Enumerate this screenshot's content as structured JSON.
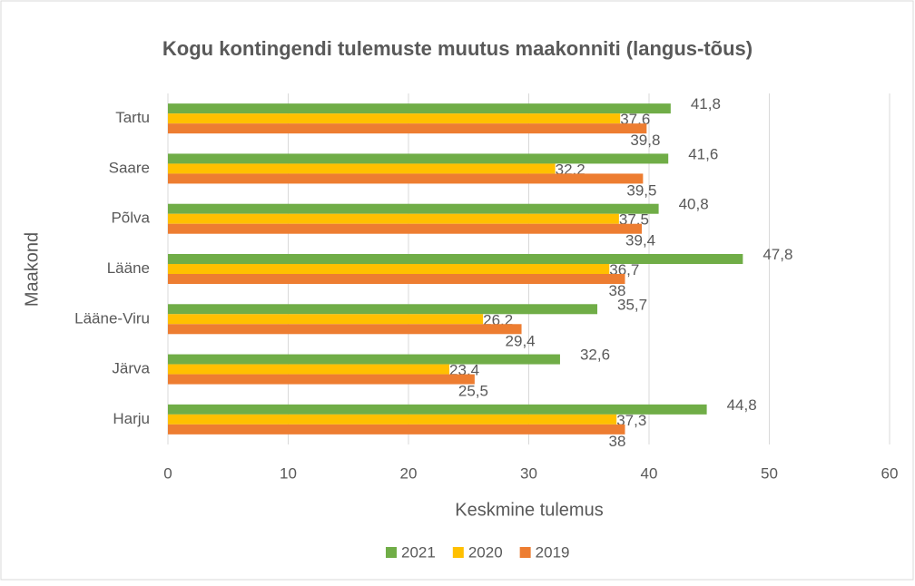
{
  "chart_data": {
    "type": "bar",
    "orientation": "horizontal",
    "title": "Kogu kontingendi tulemuste muutus maakonniti (langus-tõus)",
    "xlabel": "Keskmine tulemus",
    "ylabel": "Maakond",
    "categories": [
      "Tartu",
      "Saare",
      "Põlva",
      "Lääne",
      "Lääne-Viru",
      "Järva",
      "Harju"
    ],
    "series": [
      {
        "name": "2021",
        "color": "#70ad47",
        "values": [
          41.8,
          41.6,
          40.8,
          47.8,
          35.7,
          32.6,
          44.8
        ],
        "value_labels": [
          "41,8",
          "41,6",
          "40,8",
          "47,8",
          "35,7",
          "32,6",
          "44,8"
        ]
      },
      {
        "name": "2020",
        "color": "#ffc000",
        "values": [
          37.6,
          32.2,
          37.5,
          36.7,
          26.2,
          23.4,
          37.3
        ],
        "value_labels": [
          "37,6",
          "32,2",
          "37,5",
          "36,7",
          "26,2",
          "23,4",
          "37,3"
        ]
      },
      {
        "name": "2019",
        "color": "#ed7d31",
        "values": [
          39.8,
          39.5,
          39.4,
          38,
          29.4,
          25.5,
          38
        ],
        "value_labels": [
          "39,8",
          "39,5",
          "39,4",
          "38",
          "29,4",
          "25,5",
          "38"
        ]
      }
    ],
    "xlim": [
      0,
      60
    ],
    "xticks": [
      0,
      10,
      20,
      30,
      40,
      50,
      60
    ],
    "grid": true,
    "legend": "bottom"
  }
}
